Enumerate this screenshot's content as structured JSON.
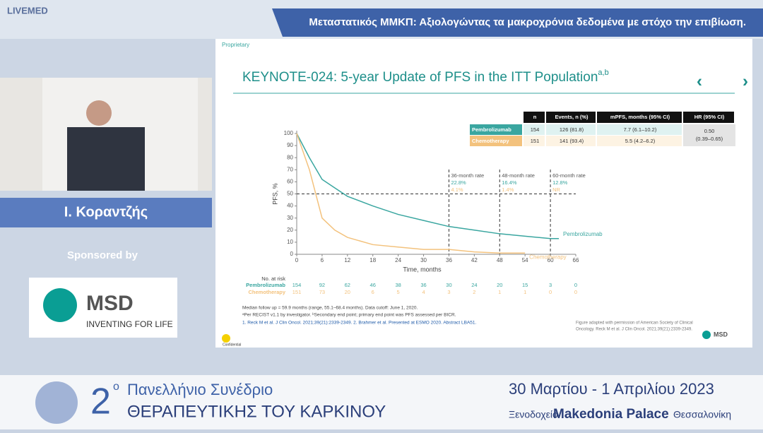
{
  "header": {
    "brand": "LIVEMED",
    "title": "Μεταστατικός ΜΜΚΠ: Αξιολογώντας τα μακροχρόνια δεδομένα με στόχο την επιβίωση."
  },
  "speaker": {
    "name": "Ι. Κοραντζής"
  },
  "sponsor": {
    "label": "Sponsored by",
    "brand": "MSD",
    "tagline": "INVENTING FOR LIFE"
  },
  "slide": {
    "proprietary": "Proprietary",
    "title": "KEYNOTE-024: 5-year Update of PFS in the ITT Population",
    "title_sup": "a,b",
    "table": {
      "header": [
        "n",
        "Events, n (%)",
        "mPFS, months (95% CI)",
        "HR (95% CI)"
      ],
      "rows": [
        [
          "Pembrolizumab",
          "154",
          "126 (81.8)",
          "7.7 (6.1–10.2)"
        ],
        [
          "Chemotherapy",
          "151",
          "141 (93.4)",
          "5.5 (4.2–6.2)"
        ]
      ],
      "hr": [
        "0.50",
        "(0.39–0.65)"
      ]
    },
    "risk_table": {
      "label": "No. at risk",
      "rows": [
        {
          "name": "Pembrolizumab",
          "counts": [
            "154",
            "92",
            "62",
            "46",
            "38",
            "36",
            "30",
            "24",
            "20",
            "15",
            "3",
            "0"
          ]
        },
        {
          "name": "Chemotherapy",
          "counts": [
            "151",
            "73",
            "20",
            "6",
            "5",
            "4",
            "3",
            "2",
            "1",
            "1",
            "0",
            "0"
          ]
        }
      ]
    },
    "footnotes": [
      "Median follow up = 59.9 months (range, 55.1–68.4 months). Data cutoff: June 1, 2020.",
      "ᵃPer RECIST v1.1 by investigator. ᵇSecondary end point; primary end point was PFS assessed per BICR.",
      "1. Reck M et al. J Clin Oncol. 2021;39(21):2339-2349. 2. Brahmer et al. Presented at ESMO 2020. Abstract LBA51."
    ],
    "credit": [
      "Figure adapted with permission of American Society of Clinical",
      "Oncology. Reck M et al. J Clin Oncol. 2021;39(21):2339-2349."
    ],
    "confidential": "Confidential",
    "logo": "MSD"
  },
  "chart_data": {
    "type": "line",
    "x_label": "Time, months",
    "y_label": "PFS, %",
    "x": [
      0,
      3,
      6,
      9,
      12,
      18,
      24,
      30,
      36,
      42,
      48,
      54,
      60,
      62
    ],
    "series": [
      {
        "name": "Pembrolizumab",
        "color": "#3aa6a0",
        "values": [
          100,
          80,
          62,
          55,
          48,
          40,
          33,
          28,
          23,
          20,
          17,
          15,
          13,
          13
        ]
      },
      {
        "name": "Chemotherapy",
        "color": "#f3c27d",
        "values": [
          100,
          70,
          30,
          20,
          14,
          8,
          6,
          4,
          4,
          2,
          1,
          1,
          null,
          null
        ]
      }
    ],
    "xlim": [
      0,
      66
    ],
    "xticks": [
      0,
      6,
      12,
      18,
      24,
      30,
      36,
      42,
      48,
      54,
      60,
      66
    ],
    "ylim": [
      0,
      100
    ],
    "yticks": [
      0,
      10,
      20,
      30,
      40,
      50,
      60,
      70,
      80,
      90,
      100
    ],
    "reference_y": 50,
    "annotations": [
      {
        "x": 36,
        "title": "36-month rate",
        "pembro": "22.8%",
        "chemo": "4.1%"
      },
      {
        "x": 48,
        "title": "48-month rate",
        "pembro": "16.4%",
        "chemo": "1.4%"
      },
      {
        "x": 60,
        "title": "60-month rate",
        "pembro": "12.8%",
        "chemo": "NR"
      }
    ]
  },
  "banner": {
    "ordinal": "2",
    "ordinal_sup": "ο",
    "line1": "Πανελλήνιο Συνέδριο",
    "line2": "ΘΕΡΑΠΕΥΤΙΚΗΣ ΤΟΥ ΚΑΡΚΙΝΟΥ",
    "dates": "30 Μαρτίου - 1 Απριλίου 2023",
    "venue_prefix": "Ξενοδοχείο",
    "venue": "Makedonia Palace",
    "city": "Θεσσαλονίκη"
  }
}
